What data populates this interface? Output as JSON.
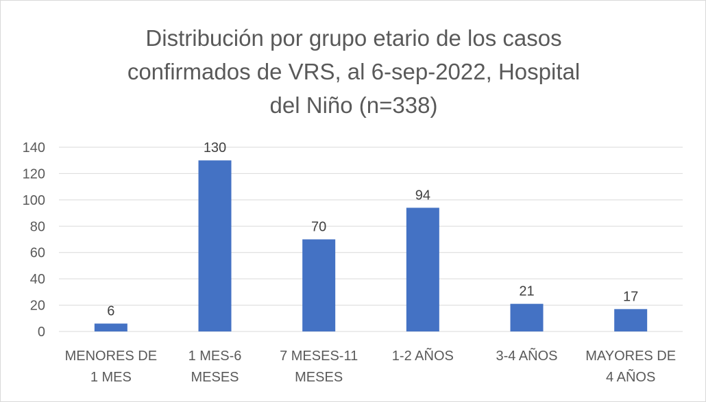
{
  "chart_data": {
    "type": "bar",
    "title_lines": [
      "Distribución por grupo etario de los casos",
      "confirmados de VRS, al 6-sep-2022, Hospital",
      "del Niño (n=338)"
    ],
    "categories": [
      [
        "MENORES DE",
        "1 MES"
      ],
      [
        "1 MES-6",
        "MESES"
      ],
      [
        "7 MESES-11",
        "MESES"
      ],
      [
        "1-2 AÑOS"
      ],
      [
        "3-4 AÑOS"
      ],
      [
        "MAYORES DE",
        "4 AÑOS"
      ]
    ],
    "values": [
      6,
      130,
      70,
      94,
      21,
      17
    ],
    "yticks": [
      0,
      20,
      40,
      60,
      80,
      100,
      120,
      140
    ],
    "ylim": [
      0,
      140
    ],
    "grid": true,
    "bar_color": "#4472c4",
    "grid_color": "#d9d9d9",
    "data_labels": true
  }
}
